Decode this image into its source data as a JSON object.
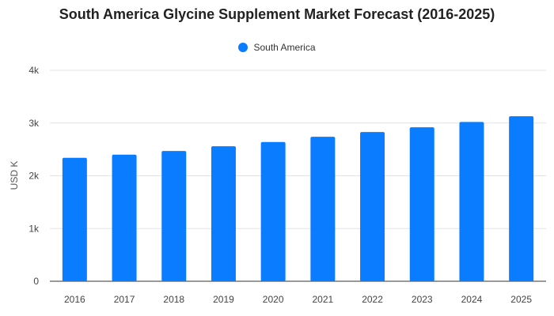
{
  "chart_data": {
    "type": "bar",
    "title": "South America Glycine Supplement Market Forecast (2016-2025)",
    "xlabel": "",
    "ylabel": "USD K",
    "categories": [
      "2016",
      "2017",
      "2018",
      "2019",
      "2020",
      "2021",
      "2022",
      "2023",
      "2024",
      "2025"
    ],
    "series": [
      {
        "name": "South America",
        "color": "#0A7CFF",
        "values": [
          2340,
          2400,
          2470,
          2560,
          2640,
          2740,
          2830,
          2920,
          3020,
          3130
        ]
      }
    ],
    "ylim": [
      0,
      4000
    ],
    "yticks": [
      {
        "value": 0,
        "label": "0"
      },
      {
        "value": 1000,
        "label": "1k"
      },
      {
        "value": 2000,
        "label": "2k"
      },
      {
        "value": 3000,
        "label": "3k"
      },
      {
        "value": 4000,
        "label": "4k"
      }
    ],
    "grid": true,
    "legend_position": "top"
  }
}
